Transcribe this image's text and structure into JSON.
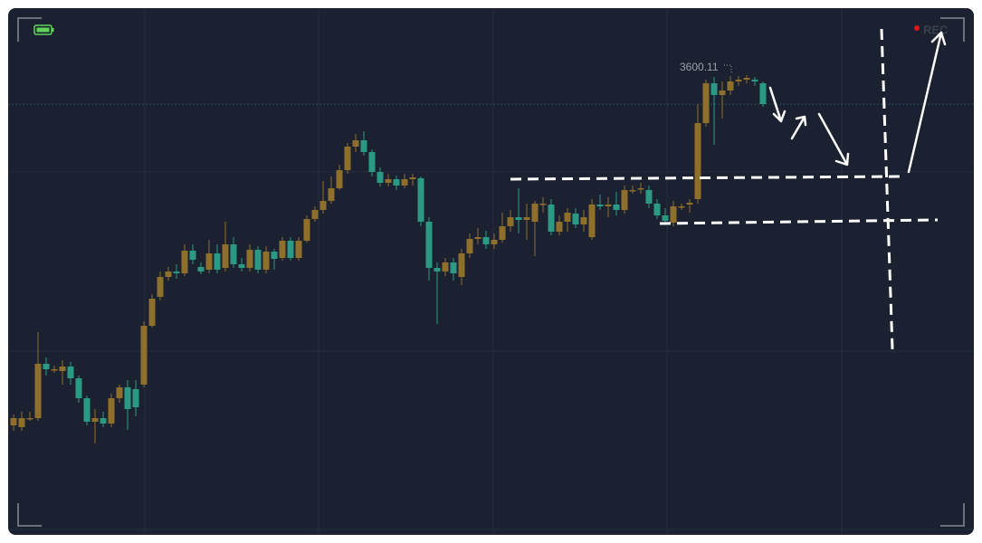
{
  "chart_data": {
    "type": "candlestick",
    "price_label": "3600.11",
    "rec_label": "REC",
    "up_color": "#8f6f2c",
    "down_color": "#2b9a84",
    "ylim": [
      3346.6,
      3636.6
    ],
    "open": [
      3406.6,
      3405.6,
      3410.6,
      3410.6,
      3440.6,
      3437.6,
      3436.6,
      3439.1,
      3432.6,
      3421.6,
      3408.6,
      3410.6,
      3407.6,
      3421.6,
      3427.6,
      3426.6,
      3429.1,
      3461.6,
      3477.6,
      3488.6,
      3491.6,
      3490.6,
      3503.1,
      3494.1,
      3492.6,
      3501.6,
      3493.6,
      3506.6,
      3495.6,
      3493.6,
      3503.6,
      3492.6,
      3502.6,
      3499.1,
      3508.6,
      3499.1,
      3508.6,
      3520.6,
      3525.6,
      3530.6,
      3537.6,
      3547.6,
      3560.6,
      3564.1,
      3557.6,
      3546.6,
      3540.6,
      3542.6,
      3539.1,
      3542.6,
      3543.1,
      3519.1,
      3493.6,
      3491.6,
      3496.6,
      3488.6,
      3501.6,
      3509.6,
      3510.6,
      3506.6,
      3509.1,
      3516.6,
      3521.6,
      3520.1,
      3519.1,
      3529.1,
      3528.6,
      3513.6,
      3519.1,
      3523.6,
      3517.6,
      3510.6,
      3528.6,
      3527.6,
      3528.6,
      3525.6,
      3536.6,
      3537.6,
      3536.6,
      3529.1,
      3522.6,
      3518.6,
      3527.6,
      3528.6,
      3531.6,
      3573.6,
      3595.6,
      3589.1,
      3591.6,
      3596.6,
      3597.6,
      3597.6,
      3595.6
    ],
    "high": [
      3412.6,
      3414.1,
      3414.1,
      3458.1,
      3444.1,
      3439.6,
      3442.6,
      3441.6,
      3434.1,
      3423.1,
      3415.6,
      3414.1,
      3424.1,
      3429.1,
      3431.6,
      3431.6,
      3464.1,
      3479.1,
      3491.6,
      3494.1,
      3495.6,
      3506.6,
      3506.6,
      3496.6,
      3509.1,
      3506.6,
      3519.1,
      3510.6,
      3499.1,
      3506.6,
      3505.6,
      3505.6,
      3504.1,
      3510.6,
      3510.6,
      3510.6,
      3522.6,
      3527.6,
      3541.6,
      3544.1,
      3550.6,
      3562.6,
      3567.6,
      3569.1,
      3559.1,
      3549.1,
      3545.6,
      3544.6,
      3545.6,
      3545.6,
      3544.1,
      3521.6,
      3496.6,
      3499.1,
      3499.1,
      3504.1,
      3512.6,
      3515.6,
      3514.1,
      3512.6,
      3524.1,
      3525.6,
      3537.6,
      3529.1,
      3530.6,
      3532.6,
      3531.6,
      3522.6,
      3526.6,
      3526.6,
      3525.6,
      3531.6,
      3534.1,
      3532.6,
      3535.6,
      3539.1,
      3539.1,
      3540.6,
      3539.1,
      3531.6,
      3526.6,
      3530.6,
      3529.1,
      3531.6,
      3584.1,
      3597.6,
      3599.1,
      3596.6,
      3599.6,
      3599.6,
      3600.1,
      3599.1,
      3596.6
    ],
    "low": [
      3403.6,
      3403.6,
      3409.1,
      3409.1,
      3434.1,
      3435.6,
      3429.1,
      3429.1,
      3419.1,
      3406.6,
      3396.6,
      3405.6,
      3405.6,
      3419.1,
      3404.1,
      3411.6,
      3427.6,
      3460.6,
      3475.6,
      3486.6,
      3487.6,
      3489.1,
      3495.6,
      3490.1,
      3490.6,
      3490.6,
      3491.6,
      3493.6,
      3491.6,
      3491.6,
      3490.6,
      3490.6,
      3492.6,
      3497.6,
      3497.6,
      3497.6,
      3507.6,
      3519.1,
      3523.6,
      3529.1,
      3536.6,
      3545.6,
      3557.6,
      3555.6,
      3544.1,
      3538.6,
      3538.6,
      3536.6,
      3537.6,
      3539.1,
      3516.6,
      3486.6,
      3462.6,
      3489.1,
      3486.6,
      3484.1,
      3499.1,
      3506.6,
      3504.1,
      3504.1,
      3507.6,
      3513.6,
      3512.6,
      3509.1,
      3500.1,
      3524.1,
      3511.6,
      3511.6,
      3513.6,
      3515.6,
      3513.6,
      3509.1,
      3525.6,
      3521.6,
      3522.6,
      3523.6,
      3534.6,
      3534.6,
      3526.6,
      3520.6,
      3517.6,
      3516.6,
      3525.6,
      3524.1,
      3529.1,
      3571.6,
      3561.6,
      3576.1,
      3589.1,
      3594.1,
      3595.6,
      3594.1,
      3582.6
    ],
    "close": [
      3410.6,
      3410.6,
      3410.6,
      3440.6,
      3437.6,
      3437.6,
      3439.1,
      3432.6,
      3421.6,
      3408.6,
      3410.6,
      3407.6,
      3421.6,
      3427.6,
      3415.6,
      3416.6,
      3461.6,
      3476.6,
      3488.6,
      3491.6,
      3490.6,
      3503.1,
      3498.1,
      3491.6,
      3501.6,
      3492.6,
      3506.6,
      3495.6,
      3493.6,
      3503.6,
      3492.6,
      3502.6,
      3498.6,
      3508.6,
      3499.1,
      3508.6,
      3520.6,
      3525.6,
      3530.6,
      3537.6,
      3547.6,
      3560.6,
      3564.1,
      3557.6,
      3546.6,
      3540.6,
      3542.6,
      3539.1,
      3542.6,
      3543.6,
      3519.1,
      3493.6,
      3491.6,
      3496.6,
      3490.6,
      3501.6,
      3509.6,
      3510.6,
      3506.6,
      3509.1,
      3516.6,
      3521.6,
      3520.1,
      3521.6,
      3529.1,
      3529.1,
      3513.6,
      3519.1,
      3524.1,
      3517.6,
      3521.6,
      3528.6,
      3527.6,
      3528.6,
      3525.6,
      3536.6,
      3536.6,
      3537.6,
      3529.1,
      3522.6,
      3519.6,
      3527.6,
      3527.6,
      3529.6,
      3573.6,
      3595.6,
      3589.1,
      3591.6,
      3596.6,
      3597.6,
      3598.6,
      3596.6,
      3584.1
    ]
  }
}
